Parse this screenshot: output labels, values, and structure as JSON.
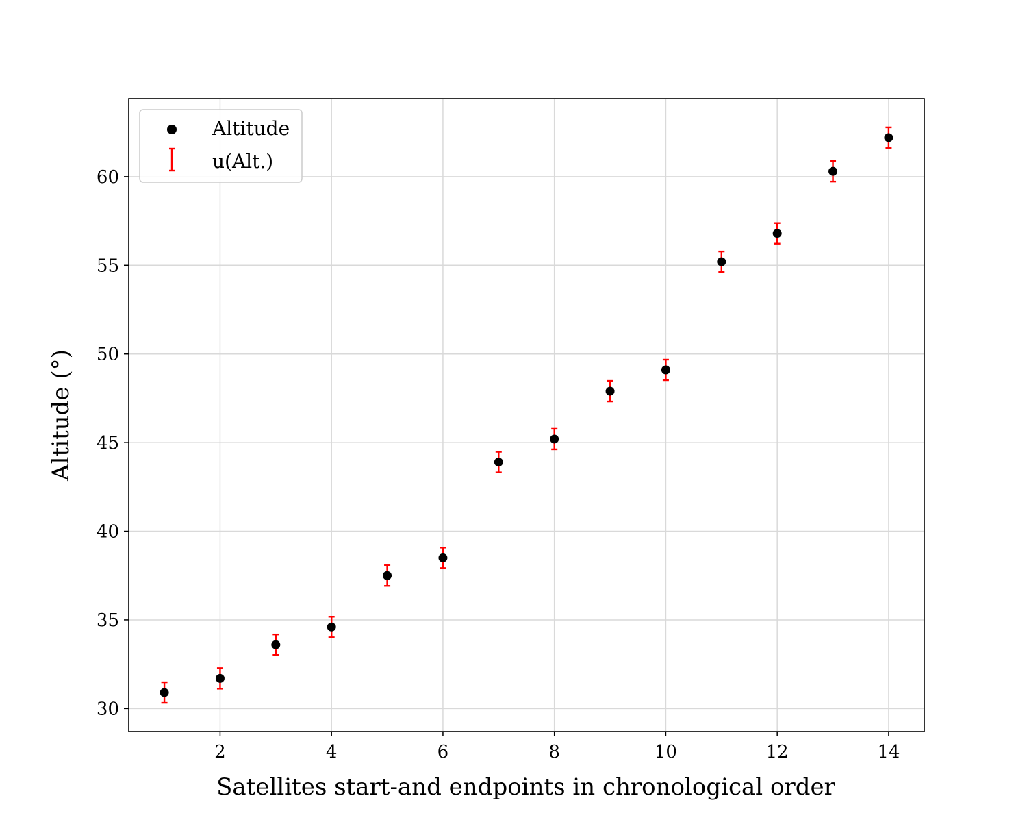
{
  "chart_data": {
    "type": "scatter",
    "title": "",
    "xlabel": "Satellites start-and endpoints in chronological order",
    "ylabel": "Altitude (°)",
    "xlim": [
      0.36,
      14.64
    ],
    "ylim": [
      28.7,
      64.4
    ],
    "xticks": [
      2,
      4,
      6,
      8,
      10,
      12,
      14
    ],
    "yticks": [
      30,
      35,
      40,
      45,
      50,
      55,
      60
    ],
    "grid": true,
    "legend_position": "top-left",
    "series": [
      {
        "name": "Altitude",
        "kind": "points",
        "color": "#000000",
        "x": [
          1,
          2,
          3,
          4,
          5,
          6,
          7,
          8,
          9,
          10,
          11,
          12,
          13,
          14
        ],
        "y": [
          30.9,
          31.7,
          33.6,
          34.6,
          37.5,
          38.5,
          43.9,
          45.2,
          47.9,
          49.1,
          55.2,
          56.8,
          60.3,
          62.2
        ]
      },
      {
        "name": "u(Alt.)",
        "kind": "errorbar",
        "color": "#ff0000",
        "error": [
          0.58,
          0.58,
          0.58,
          0.58,
          0.58,
          0.58,
          0.58,
          0.58,
          0.58,
          0.58,
          0.58,
          0.58,
          0.58,
          0.58
        ]
      }
    ]
  }
}
